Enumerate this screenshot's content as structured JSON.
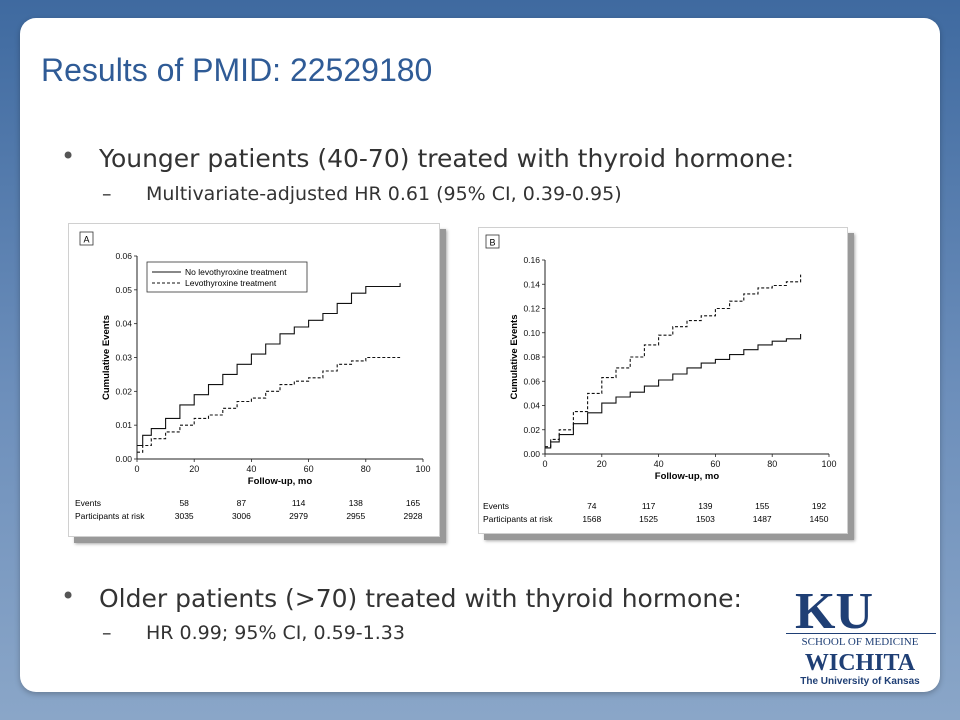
{
  "slide": {
    "title": "Results of PMID: 22529180",
    "bullets": [
      {
        "text": "Younger patients (40-70) treated with thyroid hormone:",
        "sub": "Multivariate-adjusted HR 0.61 (95% CI, 0.39-0.95)"
      },
      {
        "text": "Older patients (>70) treated with thyroid hormone:",
        "sub": "HR 0.99; 95% CI, 0.59-1.33"
      }
    ],
    "bullet_symbol": "•",
    "dash_symbol": "–"
  },
  "logo": {
    "mark": "KU",
    "line1": "SCHOOL OF MEDICINE",
    "line2": "WICHITA",
    "line3": "The University of Kansas",
    "color": "#1f3f75"
  },
  "colors": {
    "title": "#2f5b96",
    "text": "#333333"
  },
  "chart_data": [
    {
      "type": "line",
      "panel_label": "A",
      "xlabel": "Follow-up, mo",
      "ylabel": "Cumulative Events",
      "xlim": [
        0,
        100
      ],
      "ylim": [
        0,
        0.06
      ],
      "xticks": [
        "0",
        "20",
        "40",
        "60",
        "80",
        "100"
      ],
      "yticks": [
        "0.00",
        "0.01",
        "0.02",
        "0.03",
        "0.04",
        "0.05",
        "0.06"
      ],
      "legend": [
        "No levothyroxine treatment",
        "Levothyroxine treatment"
      ],
      "legend_placement": "top-left",
      "series": [
        {
          "name": "No levothyroxine treatment",
          "style": "solid",
          "x": [
            0,
            2,
            5,
            10,
            15,
            20,
            25,
            30,
            35,
            40,
            45,
            50,
            55,
            60,
            65,
            70,
            75,
            80,
            85,
            92
          ],
          "values": [
            0.004,
            0.007,
            0.009,
            0.012,
            0.016,
            0.019,
            0.022,
            0.025,
            0.028,
            0.031,
            0.034,
            0.037,
            0.039,
            0.041,
            0.043,
            0.046,
            0.049,
            0.051,
            0.051,
            0.052
          ]
        },
        {
          "name": "Levothyroxine treatment",
          "style": "dashed",
          "x": [
            0,
            2,
            5,
            10,
            15,
            20,
            25,
            30,
            35,
            40,
            45,
            50,
            55,
            60,
            65,
            70,
            75,
            80,
            85,
            92
          ],
          "values": [
            0.002,
            0.004,
            0.006,
            0.008,
            0.01,
            0.012,
            0.013,
            0.015,
            0.017,
            0.018,
            0.02,
            0.022,
            0.023,
            0.024,
            0.026,
            0.028,
            0.029,
            0.03,
            0.03,
            0.03
          ]
        }
      ],
      "table": {
        "row_labels": [
          "Events",
          "Participants at risk"
        ],
        "events": [
          "58",
          "87",
          "114",
          "138",
          "165"
        ],
        "at_risk": [
          "3035",
          "3006",
          "2979",
          "2955",
          "2928"
        ]
      }
    },
    {
      "type": "line",
      "panel_label": "B",
      "xlabel": "Follow-up, mo",
      "ylabel": "Cumulative Events",
      "xlim": [
        0,
        100
      ],
      "ylim": [
        0,
        0.16
      ],
      "xticks": [
        "0",
        "20",
        "40",
        "60",
        "80",
        "100"
      ],
      "yticks": [
        "0.00",
        "0.02",
        "0.04",
        "0.06",
        "0.08",
        "0.10",
        "0.12",
        "0.14",
        "0.16"
      ],
      "series": [
        {
          "style": "solid",
          "x": [
            0,
            2,
            5,
            10,
            15,
            20,
            25,
            30,
            35,
            40,
            45,
            50,
            55,
            60,
            65,
            70,
            75,
            80,
            85,
            90
          ],
          "values": [
            0.005,
            0.01,
            0.016,
            0.025,
            0.034,
            0.042,
            0.047,
            0.051,
            0.056,
            0.061,
            0.066,
            0.071,
            0.075,
            0.078,
            0.082,
            0.086,
            0.09,
            0.093,
            0.095,
            0.099
          ]
        },
        {
          "style": "dashed",
          "x": [
            0,
            2,
            5,
            10,
            15,
            20,
            25,
            30,
            35,
            40,
            45,
            50,
            55,
            60,
            65,
            70,
            75,
            80,
            85,
            90
          ],
          "values": [
            0.006,
            0.012,
            0.02,
            0.035,
            0.05,
            0.063,
            0.071,
            0.08,
            0.09,
            0.098,
            0.105,
            0.11,
            0.114,
            0.12,
            0.126,
            0.132,
            0.137,
            0.139,
            0.142,
            0.148
          ]
        }
      ],
      "table": {
        "row_labels": [
          "Events",
          "Participants at risk"
        ],
        "events": [
          "74",
          "117",
          "139",
          "155",
          "192"
        ],
        "at_risk": [
          "1568",
          "1525",
          "1503",
          "1487",
          "1450"
        ]
      }
    }
  ]
}
